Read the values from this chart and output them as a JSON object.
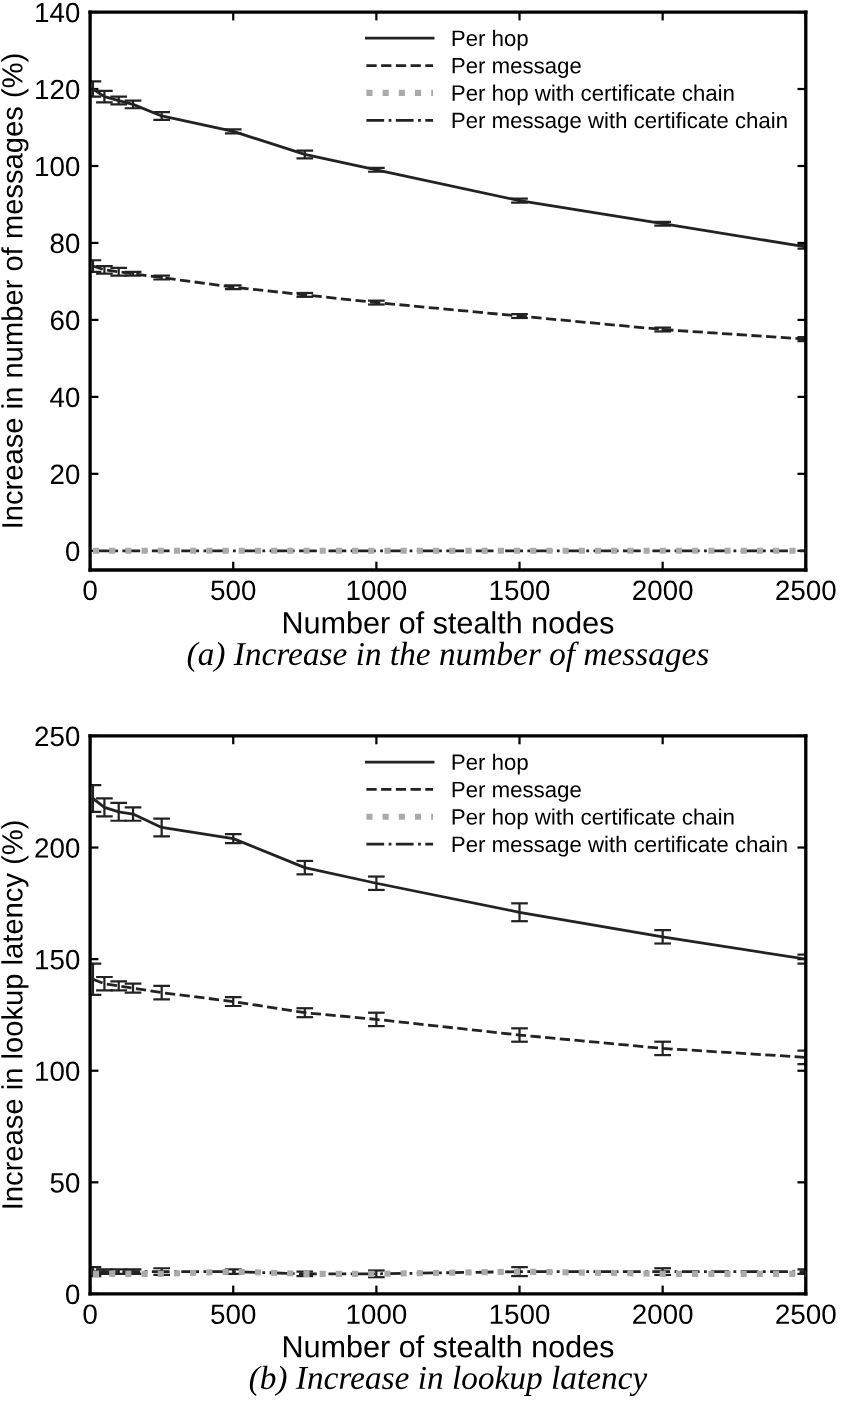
{
  "chart_data": [
    {
      "type": "line",
      "title": "(a) Increase in the number of messages",
      "xlabel": "Number of stealth nodes",
      "ylabel": "Increase in number of messages (%)",
      "x": [
        10,
        50,
        100,
        150,
        250,
        500,
        750,
        1000,
        1500,
        2000,
        2500
      ],
      "xlim": [
        0,
        2500
      ],
      "xticks": [
        0,
        500,
        1000,
        1500,
        2000,
        2500
      ],
      "ylim": [
        -5,
        140
      ],
      "yticks": [
        0,
        20,
        40,
        60,
        80,
        100,
        120,
        140
      ],
      "grid": false,
      "legend": "top right",
      "series": [
        {
          "name": "Per hop",
          "color": "#222222",
          "line_style": "solid",
          "values": [
            120,
            118,
            117,
            116,
            113,
            109,
            103,
            99,
            91,
            85,
            79
          ],
          "errors": [
            2,
            1.5,
            1,
            1,
            1,
            0.5,
            1,
            0.5,
            0.5,
            0.5,
            0.5
          ]
        },
        {
          "name": "Per message",
          "color": "#222222",
          "line_style": "dashed",
          "values": [
            74,
            73,
            72.5,
            72,
            71,
            68.5,
            66.5,
            64.5,
            61,
            57.5,
            55
          ],
          "errors": [
            1.5,
            1,
            1,
            0.5,
            0.5,
            0.5,
            0.5,
            0.5,
            0.5,
            0.5,
            0.5
          ]
        },
        {
          "name": "Per hop with certificate chain",
          "color": "#aaaaaa",
          "line_style": "dotted",
          "values": [
            0,
            0,
            0,
            0,
            0,
            0,
            0,
            0,
            0,
            0,
            0
          ]
        },
        {
          "name": "Per message with certificate chain",
          "color": "#222222",
          "line_style": "dashdot",
          "values": [
            0,
            0,
            0,
            0,
            0,
            0,
            0,
            0,
            0,
            0,
            0
          ]
        }
      ]
    },
    {
      "type": "line",
      "title": "(b) Increase in lookup latency",
      "xlabel": "Number of stealth nodes",
      "ylabel": "Increase in lookup latency (%)",
      "x": [
        10,
        50,
        100,
        150,
        250,
        500,
        750,
        1000,
        1500,
        2000,
        2500
      ],
      "xlim": [
        0,
        2500
      ],
      "xticks": [
        0,
        500,
        1000,
        1500,
        2000,
        2500
      ],
      "ylim": [
        0,
        250
      ],
      "yticks": [
        0,
        50,
        100,
        150,
        200,
        250
      ],
      "grid": false,
      "legend": "top right",
      "series": [
        {
          "name": "Per hop",
          "color": "#222222",
          "line_style": "solid",
          "values": [
            222,
            218,
            216,
            215,
            209,
            204,
            191,
            184,
            171,
            160,
            150
          ],
          "errors": [
            6,
            4,
            4,
            3,
            4,
            2,
            3,
            3,
            4,
            3,
            2
          ]
        },
        {
          "name": "Per message",
          "color": "#222222",
          "line_style": "dashed",
          "values": [
            141,
            139,
            138,
            137,
            135,
            131,
            126,
            123,
            116,
            110,
            106
          ],
          "errors": [
            7,
            3,
            2,
            2,
            3,
            2,
            2,
            3,
            3,
            3,
            3
          ]
        },
        {
          "name": "Per hop with certificate chain",
          "color": "#aaaaaa",
          "line_style": "dotted",
          "values": [
            9,
            9,
            9,
            9,
            9,
            10,
            9,
            9,
            10,
            9,
            9
          ]
        },
        {
          "name": "Per message with certificate chain",
          "color": "#222222",
          "line_style": "dashdot",
          "values": [
            10,
            10,
            10,
            10,
            10,
            10,
            9,
            9,
            10,
            10,
            10
          ],
          "errors": [
            2,
            1,
            1,
            1,
            1.5,
            1,
            1,
            1.5,
            2,
            1.5,
            1
          ]
        }
      ]
    }
  ]
}
